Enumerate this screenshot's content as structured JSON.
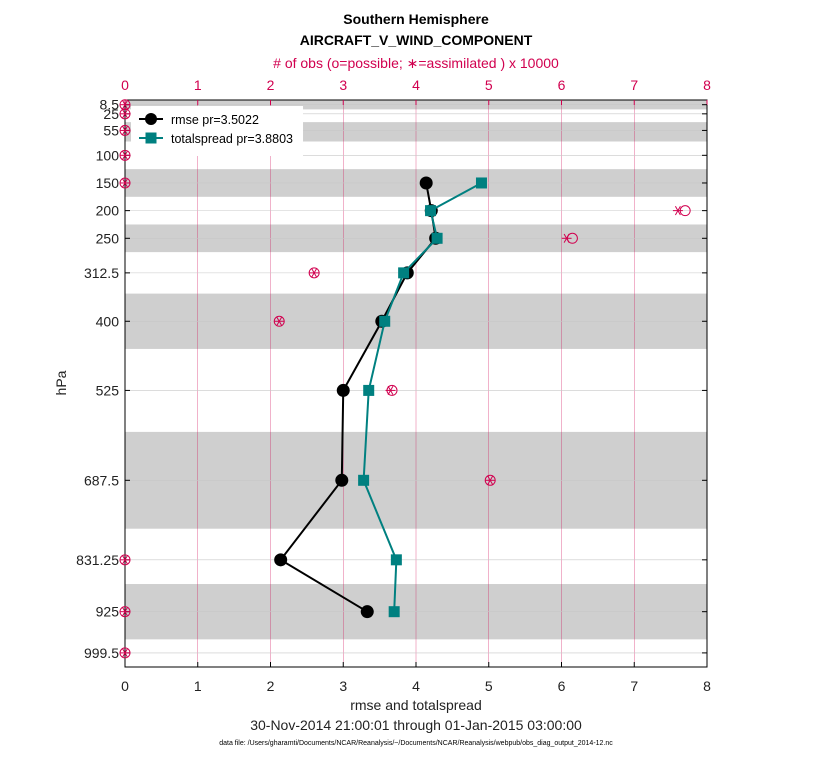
{
  "chart_data": {
    "type": "line",
    "title": "Southern Hemisphere",
    "subtitle": "AIRCRAFT_V_WIND_COMPONENT",
    "top_axis_label": "# of obs (o=possible; ∗=assimilated ) x 10000",
    "xlabel": "rmse and totalspread",
    "ylabel": "hPa",
    "date_range": "30-Nov-2014 21:00:01 through 01-Jan-2015 03:00:00",
    "footnote": "data file: /Users/gharamti/Documents/NCAR/Reanalysis/~/Documents/NCAR/Reanalysis/webpub/obs_diag_output_2014-12.nc",
    "xlim": [
      0,
      8
    ],
    "x_ticks": [
      "0",
      "1",
      "2",
      "3",
      "4",
      "5",
      "6",
      "7",
      "8"
    ],
    "top_xlim": [
      0,
      8
    ],
    "top_x_ticks": [
      "0",
      "1",
      "2",
      "3",
      "4",
      "5",
      "6",
      "7",
      "8"
    ],
    "ylim": [
      1025,
      0
    ],
    "y_levels": [
      8.5,
      25,
      55,
      100,
      150,
      200,
      250,
      312.5,
      400,
      525,
      687.5,
      831.25,
      925,
      999.5
    ],
    "y_tick_labels": [
      "8.5",
      "25",
      "55",
      "100",
      "150",
      "200",
      "250",
      "312.5",
      "400",
      "525",
      "687.5",
      "831.25",
      "925",
      "999.5"
    ],
    "shaded_bands": [
      [
        0,
        17
      ],
      [
        40,
        75
      ],
      [
        125,
        175
      ],
      [
        225,
        275
      ],
      [
        350,
        450
      ],
      [
        600,
        775
      ],
      [
        875,
        975
      ]
    ],
    "series": [
      {
        "name": "rmse pr=3.5022",
        "color": "#000000",
        "marker": "circle",
        "x": [
          4.14,
          4.21,
          4.27,
          3.88,
          3.53,
          3.0,
          2.98,
          2.14,
          3.33
        ],
        "y": [
          150,
          200,
          250,
          312.5,
          400,
          525,
          687.5,
          831.25,
          925
        ]
      },
      {
        "name": "totalspread pr=3.8803",
        "color": "#008080",
        "marker": "square",
        "x": [
          4.9,
          4.2,
          4.29,
          3.83,
          3.57,
          3.35,
          3.28,
          3.73,
          3.7
        ],
        "y": [
          150,
          200,
          250,
          312.5,
          400,
          525,
          687.5,
          831.25,
          925
        ]
      }
    ],
    "obs_counts": {
      "color": "#d1004f",
      "levels": [
        8.5,
        25,
        55,
        100,
        150,
        200,
        250,
        312.5,
        400,
        525,
        687.5,
        831.25,
        925,
        999.5
      ],
      "possible": [
        0,
        0,
        0,
        0,
        0,
        7.7,
        6.15,
        2.6,
        2.12,
        3.67,
        5.02,
        0,
        0,
        0
      ],
      "assimilated": [
        0,
        0,
        0,
        0,
        0,
        7.6,
        6.07,
        2.6,
        2.12,
        3.65,
        5.02,
        0,
        0,
        0
      ]
    },
    "legend_position": "top-left",
    "grid": true
  }
}
